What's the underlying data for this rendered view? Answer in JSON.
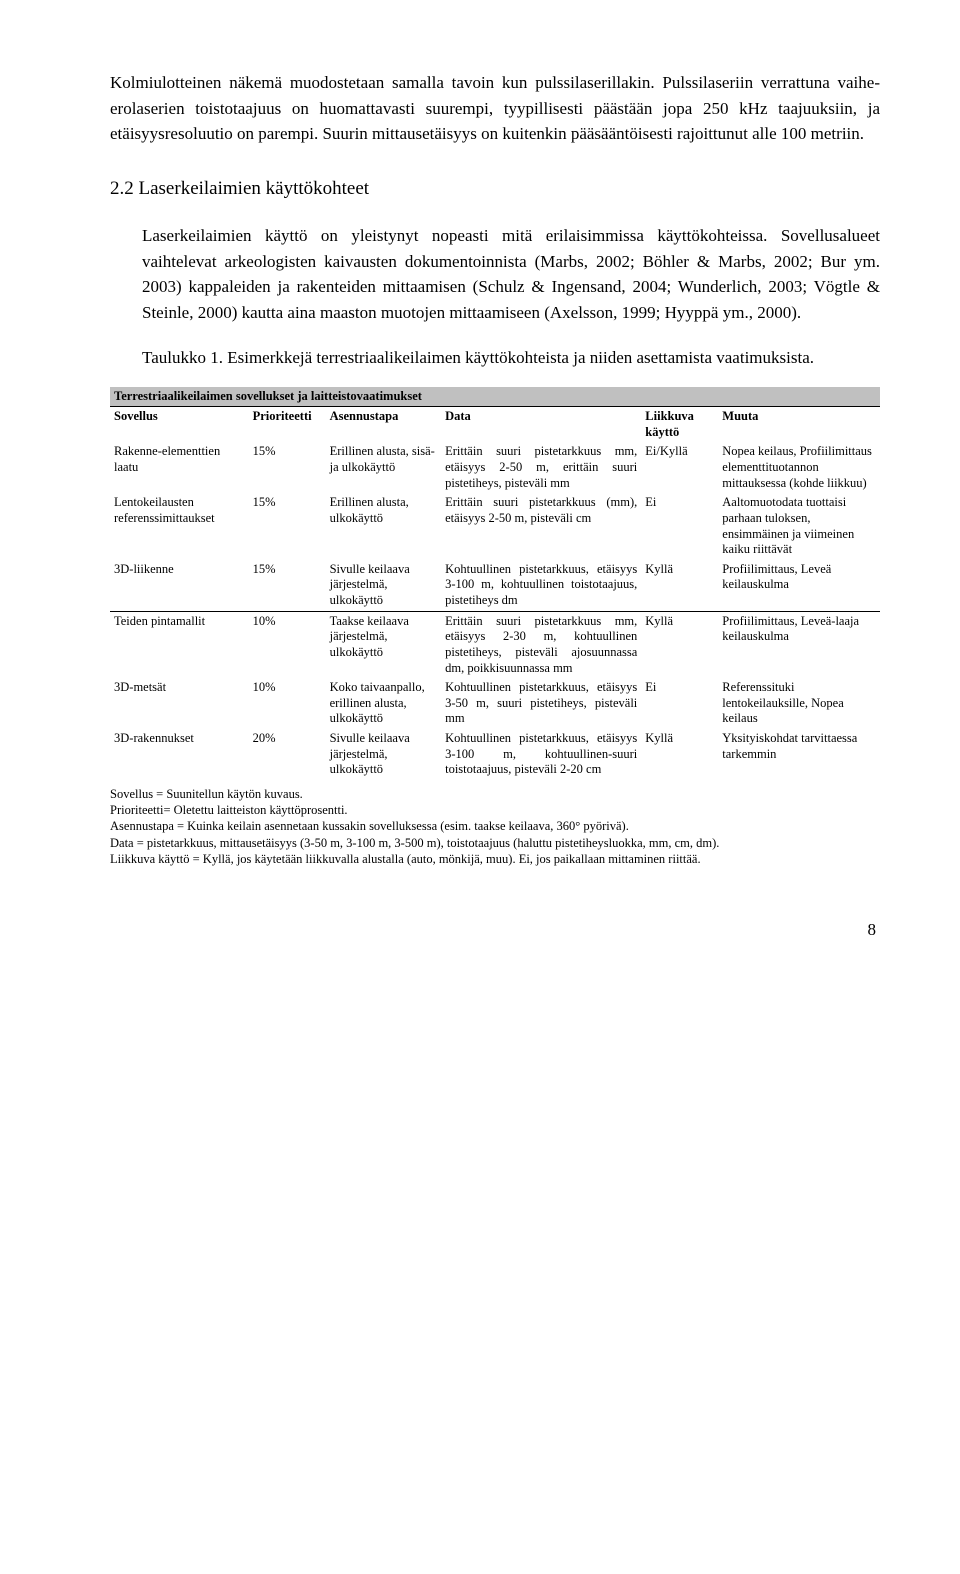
{
  "paragraphs": {
    "p1": "Kolmiulotteinen näkemä muodostetaan samalla tavoin kun pulssilaserillakin. Pulssilaseriin verrattuna vaihe-erolaserien toistotaajuus on huomattavasti suurempi, tyypillisesti päästään jopa 250 kHz taajuuksiin, ja etäisyysresoluutio on parempi. Suurin mittausetäisyys on kuitenkin pääsääntöisesti rajoittunut alle 100 metriin.",
    "heading": "2.2 Laserkeilaimien käyttökohteet",
    "p2": "Laserkeilaimien käyttö on yleistynyt nopeasti mitä erilaisimmissa käyttökohteissa. Sovellusalueet vaihtelevat arkeologisten kaivausten dokumentoinnista (Marbs, 2002; Böhler & Marbs, 2002; Bur ym. 2003) kappaleiden ja rakenteiden mittaamisen (Schulz & Ingensand, 2004; Wunderlich, 2003; Vögtle & Steinle, 2000) kautta aina maaston muotojen mittaamiseen (Axelsson, 1999; Hyyppä ym., 2000).",
    "caption": "Taulukko 1. Esimerkkejä terrestriaalikeilaimen käyttökohteista ja niiden asettamista vaatimuksista."
  },
  "table": {
    "title": "Terrestriaalikeilaimen sovellukset ja laitteistovaatimukset",
    "headers": {
      "sovellus": "Sovellus",
      "prioriteetti": "Prioriteetti",
      "asennustapa": "Asennustapa",
      "data": "Data",
      "liikkuva": "Liikkuva käyttö",
      "muuta": "Muuta"
    },
    "rows_group1": [
      {
        "sovellus": "Rakenne-elementtien laatu",
        "prioriteetti": "15%",
        "asennustapa": "Erillinen alusta, sisä- ja ulkokäyttö",
        "data": "Erittäin suuri pistetarkkuus mm, etäisyys 2-50 m, erittäin suuri pistetiheys, pisteväli mm",
        "liikkuva": "Ei/Kyllä",
        "muuta": "Nopea keilaus, Profiilimittaus elementtituotannon mittauksessa (kohde liikkuu)"
      },
      {
        "sovellus": "Lentokeilausten referenssimittaukset",
        "prioriteetti": "15%",
        "asennustapa": "Erillinen alusta, ulkokäyttö",
        "data": "Erittäin suuri pistetarkkuus (mm), etäisyys 2-50 m, pisteväli cm",
        "liikkuva": "Ei",
        "muuta": "Aaltomuotodata tuottaisi parhaan tuloksen, ensimmäinen ja viimeinen kaiku riittävät"
      },
      {
        "sovellus": "3D-liikenne",
        "prioriteetti": "15%",
        "asennustapa": "Sivulle keilaava järjestelmä, ulkokäyttö",
        "data": "Kohtuullinen pistetarkkuus, etäisyys 3-100 m, kohtuullinen toistotaajuus, pistetiheys dm",
        "liikkuva": "Kyllä",
        "muuta": "Profiilimittaus, Leveä keilauskulma"
      }
    ],
    "rows_group2": [
      {
        "sovellus": "Teiden pintamallit",
        "prioriteetti": "10%",
        "asennustapa": "Taakse keilaava järjestelmä, ulkokäyttö",
        "data": "Erittäin suuri pistetarkkuus mm, etäisyys 2-30 m, kohtuullinen pistetiheys, pisteväli ajosuunnassa dm, poikkisuunnassa mm",
        "liikkuva": "Kyllä",
        "muuta": "Profiilimittaus, Leveä-laaja keilauskulma"
      },
      {
        "sovellus": "3D-metsät",
        "prioriteetti": "10%",
        "asennustapa": "Koko taivaanpallo, erillinen alusta, ulkokäyttö",
        "data": "Kohtuullinen pistetarkkuus, etäisyys 3-50 m, suuri pistetiheys, pisteväli mm",
        "liikkuva": "Ei",
        "muuta": "Referenssituki lentokeilauksille, Nopea keilaus"
      },
      {
        "sovellus": "3D-rakennukset",
        "prioriteetti": "20%",
        "asennustapa": "Sivulle keilaava järjestelmä, ulkokäyttö",
        "data": "Kohtuullinen pistetarkkuus, etäisyys 3-100 m, kohtuullinen-suuri toistotaajuus, pisteväli 2-20 cm",
        "liikkuva": "Kyllä",
        "muuta": "Yksityiskohdat tarvittaessa tarkemmin"
      }
    ]
  },
  "footnotes": {
    "f1": "Sovellus = Suunitellun käytön kuvaus.",
    "f2": "Prioriteetti= Oletettu laitteiston käyttöprosentti.",
    "f3": "Asennustapa = Kuinka keilain asennetaan kussakin sovelluksessa (esim. taakse keilaava, 360° pyörivä).",
    "f4": "Data = pistetarkkuus, mittausetäisyys (3-50 m, 3-100 m, 3-500 m), toistotaajuus (haluttu pistetiheysluokka, mm, cm, dm).",
    "f5": "Liikkuva käyttö = Kyllä, jos käytetään liikkuvalla alustalla (auto, mönkijä, muu). Ei, jos paikallaan mittaminen riittää."
  },
  "pageNumber": "8"
}
